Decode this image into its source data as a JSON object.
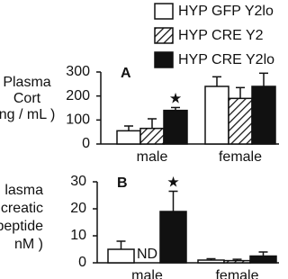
{
  "chart_data": [
    {
      "type": "bar",
      "panel": "A",
      "y_label": [
        "Plasma",
        "Cort",
        "ng / mL )"
      ],
      "categories": [
        "male",
        "female"
      ],
      "series": [
        {
          "name": "HYP GFP Y2lo",
          "color": "#ffffff",
          "hatch": false,
          "values": [
            55,
            240
          ],
          "errors": [
            20,
            40
          ]
        },
        {
          "name": "HYP CRE Y2",
          "color": "#ffffff",
          "hatch": true,
          "values": [
            65,
            190
          ],
          "errors": [
            40,
            45
          ]
        },
        {
          "name": "HYP CRE Y2lo",
          "color": "#111111",
          "hatch": false,
          "values": [
            140,
            240
          ],
          "errors": [
            12,
            55
          ]
        }
      ],
      "annotations": [
        {
          "text": "★",
          "series": 2,
          "category": 0
        }
      ],
      "ylim": [
        0,
        300
      ],
      "yticks": [
        0,
        100,
        200,
        300
      ]
    },
    {
      "type": "bar",
      "panel": "B",
      "y_label": [
        "lasma",
        "ancreatic",
        "rpeptide",
        "nM )"
      ],
      "categories": [
        "male",
        "female"
      ],
      "series": [
        {
          "color": "#ffffff",
          "hatch": false,
          "values": [
            5,
            1
          ],
          "errors": [
            3,
            0.5
          ]
        },
        {
          "color": "#ffffff",
          "hatch": true,
          "values": [
            null,
            0.8
          ],
          "errors": [
            null,
            0.5
          ],
          "value_labels": [
            "ND",
            null
          ]
        },
        {
          "color": "#111111",
          "hatch": false,
          "values": [
            19,
            2.5
          ],
          "errors": [
            7.5,
            1.5
          ]
        }
      ],
      "annotations": [
        {
          "text": "★",
          "series": 2,
          "category": 0
        }
      ],
      "ylim": [
        0,
        30
      ],
      "yticks": [
        0,
        10,
        20,
        30
      ]
    }
  ]
}
